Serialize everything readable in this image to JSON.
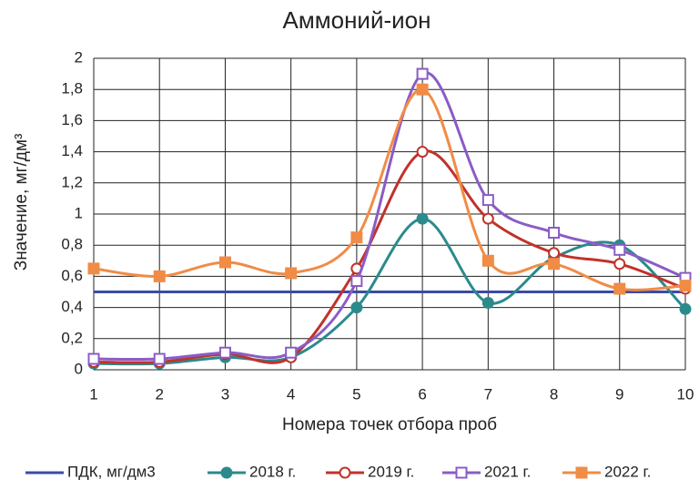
{
  "chart_data": {
    "type": "line",
    "title": "Аммоний-ион",
    "xlabel": "Номера точек отбора проб",
    "ylabel": "Значение, мг/дм³",
    "x": [
      1,
      2,
      3,
      4,
      5,
      6,
      7,
      8,
      9,
      10
    ],
    "xlim": [
      1,
      10
    ],
    "xticks": [
      1,
      2,
      3,
      4,
      5,
      6,
      7,
      8,
      9,
      10
    ],
    "ylim": [
      0,
      2
    ],
    "yticks": [
      0,
      {
        "value": 0.2,
        "label": "0,2"
      },
      {
        "value": 0.4,
        "label": "0,4"
      },
      {
        "value": 0.6,
        "label": "0,6"
      },
      {
        "value": 0.8,
        "label": "0,8"
      },
      1,
      {
        "value": 1.2,
        "label": "1,2"
      },
      {
        "value": 1.4,
        "label": "1,4"
      },
      {
        "value": 1.6,
        "label": "1,6"
      },
      {
        "value": 1.8,
        "label": "1,8"
      },
      2
    ],
    "grid": true,
    "smooth": true,
    "legend": "bottom",
    "series": [
      {
        "name": "ПДК, мг/дм3",
        "color": "#3b4ba6",
        "marker": "none",
        "values": [
          0.5,
          0.5,
          0.5,
          0.5,
          0.5,
          0.5,
          0.5,
          0.5,
          0.5,
          0.5
        ]
      },
      {
        "name": "2018 г.",
        "color": "#2b8a8c",
        "marker": "circle",
        "values": [
          0.04,
          0.04,
          0.08,
          0.08,
          0.4,
          0.97,
          0.43,
          0.72,
          0.8,
          0.39
        ]
      },
      {
        "name": "2019 г.",
        "color": "#c0332b",
        "marker": "circle-open",
        "values": [
          0.05,
          0.05,
          0.1,
          0.08,
          0.65,
          1.4,
          0.97,
          0.75,
          0.68,
          0.52
        ]
      },
      {
        "name": "2021 г.",
        "color": "#8a5cc6",
        "marker": "square-open",
        "values": [
          0.07,
          0.07,
          0.11,
          0.11,
          0.57,
          1.9,
          1.09,
          0.88,
          0.77,
          0.59
        ]
      },
      {
        "name": "2022 г.",
        "color": "#f08c46",
        "marker": "square",
        "values": [
          0.65,
          0.6,
          0.69,
          0.62,
          0.85,
          1.8,
          0.7,
          0.68,
          0.52,
          0.54
        ]
      }
    ]
  }
}
